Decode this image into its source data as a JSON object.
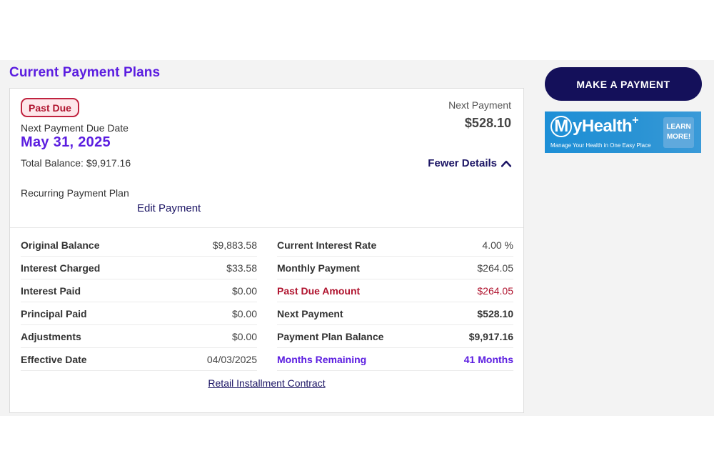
{
  "section": {
    "title": "Current Payment Plans"
  },
  "plan": {
    "status_badge": "Past Due",
    "due_label": "Next Payment Due Date",
    "due_date": "May 31, 2025",
    "total_balance": "Total Balance: $9,917.16",
    "next_payment_label": "Next Payment",
    "next_payment_amount": "$528.10",
    "toggle_details": "Fewer Details",
    "recurring_label": "Recurring Payment Plan",
    "edit_payment": "Edit Payment",
    "contract_link": "Retail Installment Contract"
  },
  "details": {
    "left": [
      {
        "label": "Original Balance",
        "value": "$9,883.58"
      },
      {
        "label": "Interest Charged",
        "value": "$33.58"
      },
      {
        "label": "Interest Paid",
        "value": "$0.00"
      },
      {
        "label": "Principal Paid",
        "value": "$0.00"
      },
      {
        "label": "Adjustments",
        "value": "$0.00"
      },
      {
        "label": "Effective Date",
        "value": "04/03/2025"
      }
    ],
    "right": [
      {
        "label": "Current Interest Rate",
        "value": "4.00 %"
      },
      {
        "label": "Monthly Payment",
        "value": "$264.05"
      },
      {
        "label": "Past Due Amount",
        "value": "$264.05"
      },
      {
        "label": "Next Payment",
        "value": "$528.10"
      },
      {
        "label": "Payment Plan Balance",
        "value": "$9,917.16"
      },
      {
        "label": "Months Remaining",
        "value": "41 Months"
      }
    ]
  },
  "sidebar": {
    "pay_button": "MAKE A PAYMENT",
    "banner": {
      "logo_m": "M",
      "logo_text": "yHealth",
      "logo_plus": "+",
      "tagline": "Manage Your Health in One Easy Place",
      "learn_line1": "LEARN",
      "learn_line2": "MORE!"
    }
  },
  "colors": {
    "accent_purple": "#5b1de0",
    "navy": "#14105a",
    "past_due_red": "#b0142f",
    "banner_blue": "#1d8fd6"
  },
  "icons": {
    "toggle": "chevron-up-icon"
  }
}
